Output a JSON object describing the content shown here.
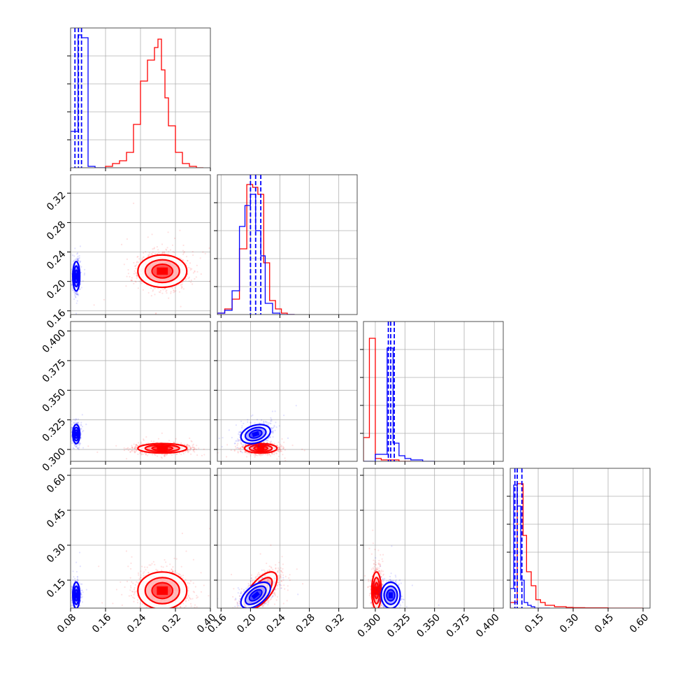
{
  "chart_data": {
    "type": "corner",
    "colors": {
      "primary": "#0000ff",
      "secondary": "#ff0000",
      "grid": "#b0b0b0",
      "frame": "#404040"
    },
    "grid": true,
    "params": [
      {
        "ticks": [
          "0.08",
          "0.16",
          "0.24",
          "0.32",
          "0.40"
        ],
        "tick_values": [
          0.08,
          0.16,
          0.24,
          0.32,
          0.4
        ],
        "range": [
          0.08,
          0.4
        ]
      },
      {
        "ticks": [
          "0.16",
          "0.20",
          "0.24",
          "0.28",
          "0.32"
        ],
        "tick_values": [
          0.16,
          0.2,
          0.24,
          0.28,
          0.32
        ],
        "range": [
          0.155,
          0.345
        ]
      },
      {
        "ticks": [
          "0.300",
          "0.325",
          "0.350",
          "0.375",
          "0.400"
        ],
        "tick_values": [
          0.3,
          0.325,
          0.35,
          0.375,
          0.4
        ],
        "range": [
          0.29,
          0.408
        ]
      },
      {
        "ticks": [
          "0.15",
          "0.30",
          "0.45",
          "0.60"
        ],
        "tick_values": [
          0.15,
          0.3,
          0.45,
          0.6
        ],
        "range": [
          0.03,
          0.63
        ]
      }
    ],
    "marginals": [
      {
        "blue": {
          "edges": [
            0.08,
            0.097,
            0.098,
            0.105,
            0.12,
            0.136,
            0.16
          ],
          "heights": [
            0.26,
            0.95,
            0.95,
            0.93,
            0.01,
            0.0
          ]
        },
        "red": {
          "edges": [
            0.16,
            0.176,
            0.192,
            0.208,
            0.224,
            0.24,
            0.256,
            0.272,
            0.28,
            0.288,
            0.296,
            0.304,
            0.32,
            0.336,
            0.352,
            0.368,
            0.384
          ],
          "heights": [
            0.01,
            0.03,
            0.05,
            0.11,
            0.31,
            0.62,
            0.77,
            0.86,
            0.92,
            0.7,
            0.5,
            0.3,
            0.11,
            0.03,
            0.01,
            0.0
          ]
        },
        "quantiles": [
          0.09,
          0.098,
          0.105
        ]
      },
      {
        "blue": {
          "edges": [
            0.155,
            0.165,
            0.175,
            0.185,
            0.1925,
            0.2,
            0.207,
            0.214,
            0.22,
            0.23,
            0.24,
            0.26
          ],
          "heights": [
            0.01,
            0.03,
            0.17,
            0.63,
            0.78,
            0.86,
            0.6,
            0.42,
            0.08,
            0.01,
            0.0
          ]
        },
        "red": {
          "edges": [
            0.155,
            0.165,
            0.175,
            0.185,
            0.195,
            0.203,
            0.21,
            0.218,
            0.226,
            0.234,
            0.242,
            0.25,
            0.26
          ],
          "heights": [
            0.01,
            0.04,
            0.11,
            0.47,
            0.93,
            0.91,
            0.86,
            0.37,
            0.1,
            0.04,
            0.01,
            0.0
          ]
        },
        "quantiles": [
          0.2,
          0.207,
          0.214
        ]
      },
      {
        "blue": {
          "edges": [
            0.29,
            0.3,
            0.31,
            0.315,
            0.32,
            0.325,
            0.33,
            0.34,
            0.35
          ],
          "heights": [
            0.0,
            0.05,
            0.81,
            0.13,
            0.04,
            0.02,
            0.01,
            0.0
          ]
        },
        "red": {
          "edges": [
            0.29,
            0.295,
            0.3,
            0.305,
            0.31,
            0.315,
            0.32,
            0.33
          ],
          "heights": [
            0.17,
            0.88,
            0.02,
            0.01,
            0.01,
            0.01,
            0.0
          ]
        },
        "quantiles": [
          0.311,
          0.313,
          0.316
        ]
      },
      {
        "blue": {
          "edges": [
            0.03,
            0.045,
            0.06,
            0.075,
            0.09,
            0.105,
            0.12,
            0.135,
            0.15,
            0.2
          ],
          "heights": [
            0.14,
            0.88,
            0.73,
            0.2,
            0.04,
            0.02,
            0.01,
            0.0,
            0.0
          ]
        },
        "red": {
          "edges": [
            0.03,
            0.06,
            0.085,
            0.1,
            0.12,
            0.14,
            0.16,
            0.18,
            0.2,
            0.22,
            0.24,
            0.27,
            0.3,
            0.35,
            0.45,
            0.6
          ],
          "heights": [
            0.04,
            0.89,
            0.52,
            0.26,
            0.16,
            0.06,
            0.04,
            0.02,
            0.02,
            0.01,
            0.01,
            0.005,
            0.003,
            0.002,
            0.0
          ]
        },
        "quantiles": [
          0.05,
          0.06,
          0.08
        ]
      }
    ],
    "blobs": [
      {
        "i": 0,
        "j": 1,
        "blue": {
          "cx": 0.093,
          "cy": 0.207,
          "sx": 0.004,
          "sy": 0.01,
          "rho": 0.0,
          "n": 900
        },
        "red": {
          "cx": 0.29,
          "cy": 0.214,
          "sx": 0.028,
          "sy": 0.011,
          "rho": 0.0,
          "n": 1300
        }
      },
      {
        "i": 0,
        "j": 2,
        "blue": {
          "cx": 0.093,
          "cy": 0.313,
          "sx": 0.004,
          "sy": 0.004,
          "rho": 0.0,
          "n": 900
        },
        "red": {
          "cx": 0.29,
          "cy": 0.301,
          "sx": 0.028,
          "sy": 0.002,
          "rho": 0.0,
          "n": 1300
        }
      },
      {
        "i": 0,
        "j": 3,
        "blue": {
          "cx": 0.093,
          "cy": 0.085,
          "sx": 0.004,
          "sy": 0.028,
          "rho": 0.0,
          "n": 900
        },
        "red": {
          "cx": 0.29,
          "cy": 0.105,
          "sx": 0.028,
          "sy": 0.04,
          "rho": 0.0,
          "n": 1300
        }
      },
      {
        "i": 1,
        "j": 2,
        "blue": {
          "cx": 0.207,
          "cy": 0.313,
          "sx": 0.01,
          "sy": 0.004,
          "rho": 0.3,
          "n": 900
        },
        "red": {
          "cx": 0.214,
          "cy": 0.301,
          "sx": 0.011,
          "sy": 0.002,
          "rho": 0.0,
          "n": 1300
        }
      },
      {
        "i": 1,
        "j": 3,
        "blue": {
          "cx": 0.207,
          "cy": 0.085,
          "sx": 0.01,
          "sy": 0.028,
          "rho": 0.55,
          "n": 900
        },
        "red": {
          "cx": 0.214,
          "cy": 0.105,
          "sx": 0.011,
          "sy": 0.04,
          "rho": 0.65,
          "n": 1300
        }
      },
      {
        "i": 2,
        "j": 3,
        "blue": {
          "cx": 0.313,
          "cy": 0.085,
          "sx": 0.004,
          "sy": 0.028,
          "rho": 0.0,
          "n": 900
        },
        "red": {
          "cx": 0.301,
          "cy": 0.105,
          "sx": 0.002,
          "sy": 0.04,
          "rho": 0.0,
          "n": 1300
        }
      }
    ]
  }
}
